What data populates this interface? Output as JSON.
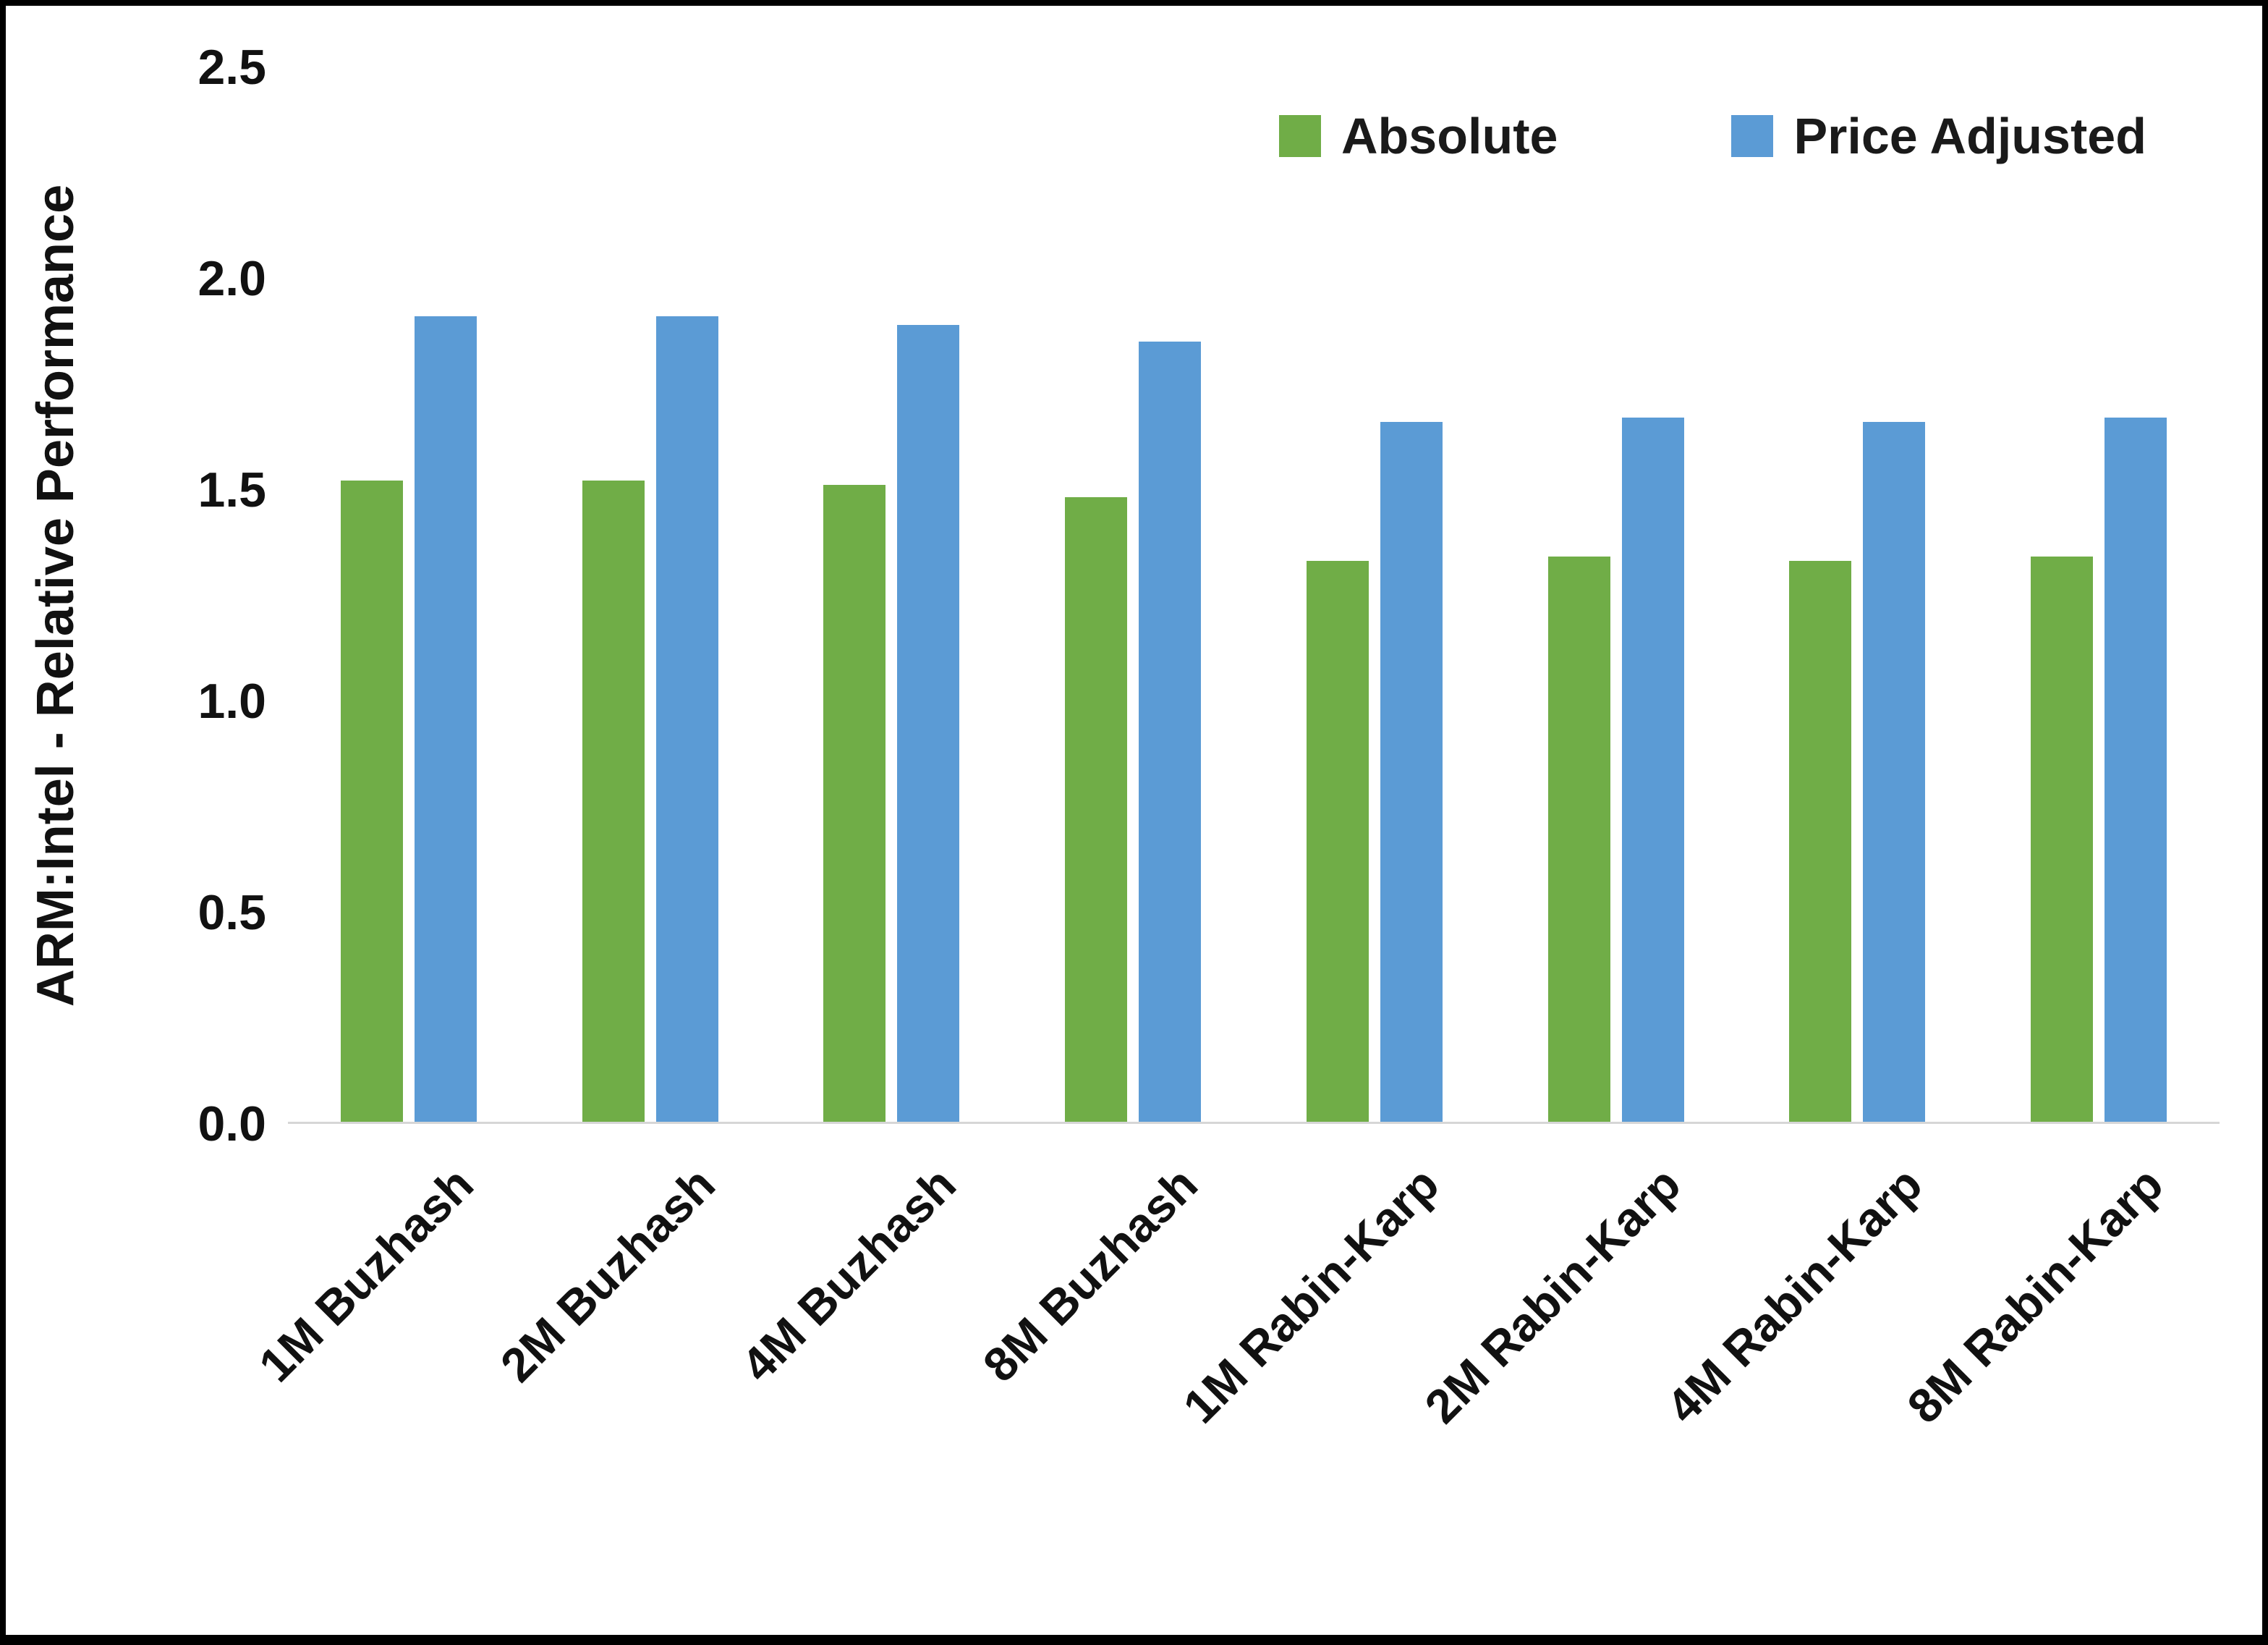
{
  "chart_data": {
    "type": "bar",
    "title": "",
    "xlabel": "",
    "ylabel": "ARM:Intel - Relative Performance",
    "ylim": [
      0,
      2.5
    ],
    "ytick_values": [
      0,
      0.5,
      1.0,
      1.5,
      2.0,
      2.5
    ],
    "ytick_labels": [
      "0.0",
      "0.5",
      "1.0",
      "1.5",
      "2.0",
      "2.5"
    ],
    "grid": false,
    "legend_position": "top-right",
    "categories": [
      "1M Buzhash",
      "2M Buzhash",
      "4M Buzhash",
      "8M Buzhash",
      "1M Rabin-Karp",
      "2M Rabin-Karp",
      "4M Rabin-Karp",
      "8M Rabin-Karp"
    ],
    "series": [
      {
        "name": "Absolute",
        "color": "#70AD47",
        "values": [
          1.52,
          1.52,
          1.51,
          1.48,
          1.33,
          1.34,
          1.33,
          1.34
        ]
      },
      {
        "name": "Price Adjusted",
        "color": "#5B9BD5",
        "values": [
          1.91,
          1.91,
          1.89,
          1.85,
          1.66,
          1.67,
          1.66,
          1.67
        ]
      }
    ]
  },
  "colors": {
    "absolute_green": "#70AD47",
    "price_adjusted_blue": "#5B9BD5",
    "axis_text": "#111111",
    "baseline_gray": "#d6d6d6",
    "frame_border": "#000000",
    "background": "#ffffff"
  }
}
